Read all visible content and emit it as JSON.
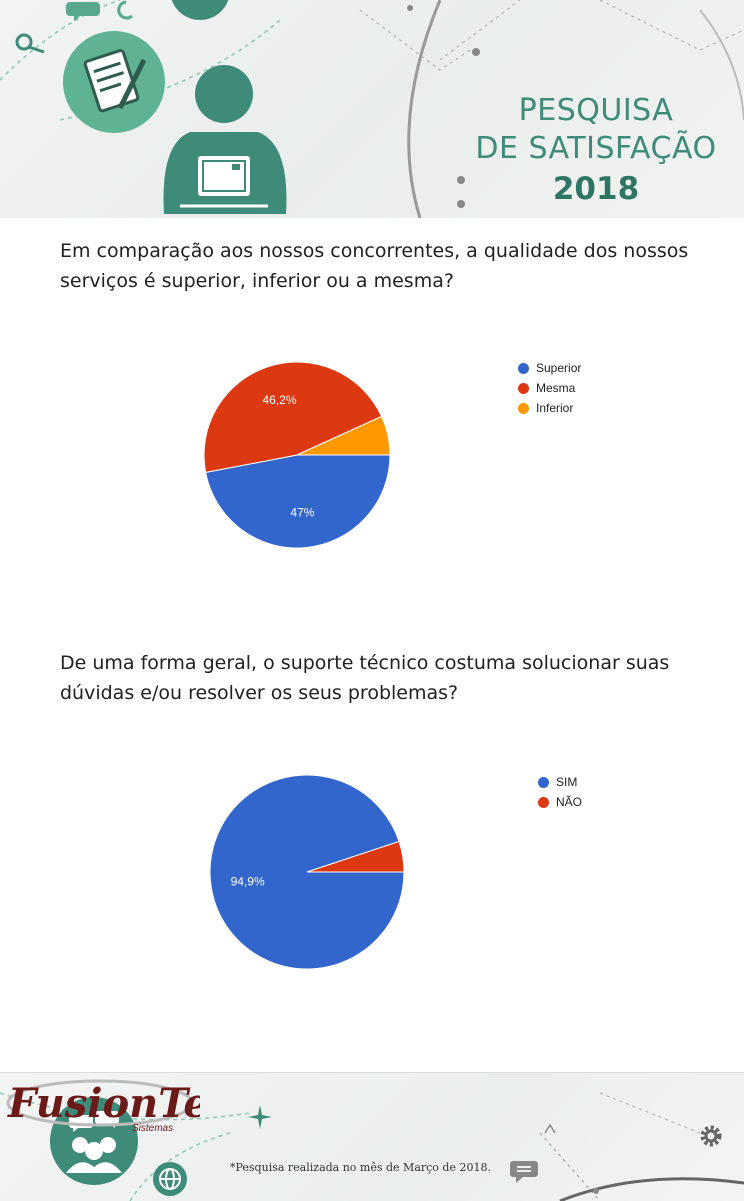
{
  "header": {
    "title_line1": "PESQUISA",
    "title_line2": "DE SATISFAÇÃO",
    "year": "2018"
  },
  "colors": {
    "accent": "#3d8b78",
    "blue": "#3366cc",
    "red": "#dc3912",
    "orange": "#ff9900"
  },
  "charts": [
    {
      "question": "Em comparação aos nossos concorrentes, a qualidade dos nossos serviços é superior, inferior ou a mesma?"
    },
    {
      "question": "De uma forma geral, o suporte técnico costuma solucionar suas dúvidas e/ou resolver os seus problemas?"
    }
  ],
  "chart_data": [
    {
      "type": "pie",
      "legend_position": "right",
      "slices": [
        {
          "label": "Superior",
          "value": 47.0,
          "display": "47%",
          "color": "#3366cc"
        },
        {
          "label": "Mesma",
          "value": 46.2,
          "display": "46,2%",
          "color": "#dc3912"
        },
        {
          "label": "Inferior",
          "value": 6.8,
          "display": "",
          "color": "#ff9900"
        }
      ]
    },
    {
      "type": "pie",
      "legend_position": "right",
      "slices": [
        {
          "label": "SIM",
          "value": 94.9,
          "display": "94,9%",
          "color": "#3366cc"
        },
        {
          "label": "NÃO",
          "value": 5.1,
          "display": "",
          "color": "#dc3912"
        }
      ]
    }
  ],
  "footer": {
    "brand_main": "FusionTech",
    "brand_sub": "Sistemas",
    "note": "*Pesquisa realizada no mês de Março de 2018."
  },
  "icons": [
    "clipboard-icon",
    "person-laptop-icon",
    "search-icon",
    "chat-icon",
    "group-chat-icon",
    "globe-icon",
    "gear-icon",
    "speech-bubble-icon"
  ]
}
